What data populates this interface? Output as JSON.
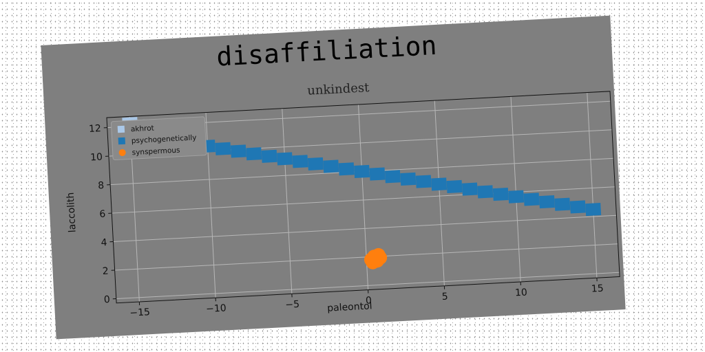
{
  "chart_data": {
    "type": "scatter",
    "title": "disaffiliation",
    "subtitle": "unkindest",
    "xlabel": "paleontol",
    "ylabel": "laccolith",
    "xlim": [
      -16.5,
      16.5
    ],
    "ylim": [
      -0.3,
      12.7
    ],
    "xticks": [
      -15,
      -10,
      -5,
      0,
      5,
      10,
      15
    ],
    "xtick_labels": [
      "−15",
      "−10",
      "−5",
      "0",
      "5",
      "10",
      "15"
    ],
    "yticks": [
      0,
      2,
      4,
      6,
      8,
      10,
      12
    ],
    "ytick_labels": [
      "0",
      "2",
      "4",
      "6",
      "8",
      "10",
      "12"
    ],
    "grid": true,
    "legend_position": "top-left",
    "series": [
      {
        "name": "akhrot",
        "marker": "square",
        "color": "#aac8e8",
        "x": [
          -15,
          -14.5,
          -14,
          -13.5
        ],
        "y": [
          12.2,
          12.0,
          11.9,
          11.8
        ]
      },
      {
        "name": "psychogenetically",
        "marker": "square",
        "color": "#1f77b4",
        "x": [
          -15,
          -14,
          -13,
          -12,
          -11,
          -10,
          -9,
          -8,
          -7,
          -6,
          -5,
          -4,
          -3,
          -2,
          -1,
          0,
          1,
          2,
          3,
          4,
          5,
          6,
          7,
          8,
          9,
          10,
          11,
          12,
          13,
          14,
          15
        ],
        "y": [
          11.5,
          11.27,
          11.03,
          10.8,
          10.57,
          10.33,
          10.1,
          9.87,
          9.63,
          9.4,
          9.17,
          8.93,
          8.7,
          8.47,
          8.23,
          8.0,
          7.77,
          7.53,
          7.3,
          7.07,
          6.83,
          6.6,
          6.37,
          6.13,
          5.9,
          5.67,
          5.43,
          5.2,
          4.97,
          4.73,
          4.5
        ]
      },
      {
        "name": "synspermous",
        "marker": "circle",
        "color": "#ff7f0e",
        "x": [
          0.3,
          0.5,
          0.7,
          0.9,
          0.4,
          0.8,
          0.6
        ],
        "y": [
          1.8,
          2.0,
          1.7,
          1.9,
          1.6,
          2.1,
          1.85
        ]
      }
    ]
  }
}
